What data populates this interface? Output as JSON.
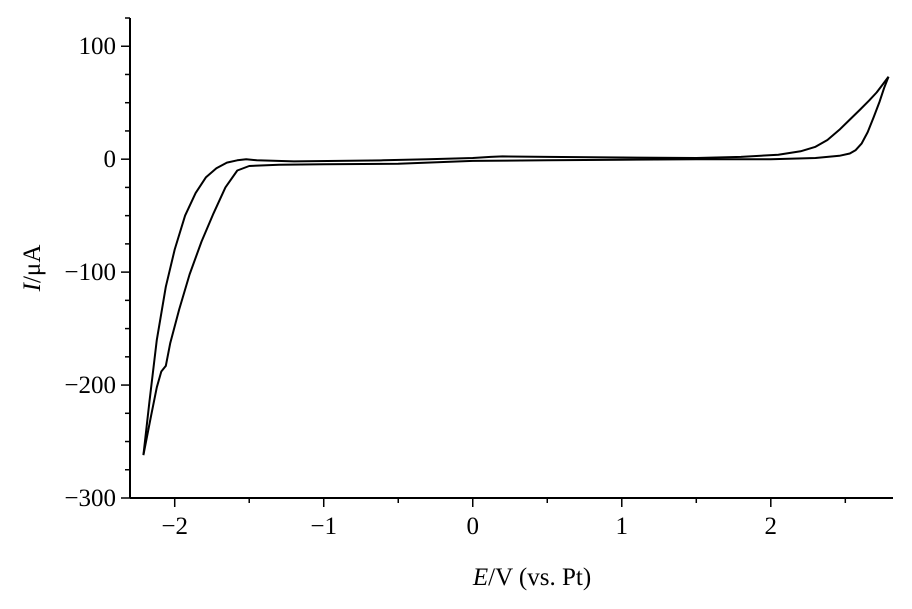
{
  "chart_data": {
    "type": "line",
    "title": "",
    "xlabel": {
      "var": "E",
      "unit": "/V (vs. Pt)"
    },
    "ylabel": {
      "var": "I",
      "unit": "/μA"
    },
    "xlim": [
      -2.3,
      2.82
    ],
    "ylim": [
      -300,
      125
    ],
    "xticks": [
      -2,
      -1,
      0,
      1,
      2
    ],
    "xtick_labels": [
      "−2",
      "−1",
      "0",
      "1",
      "2"
    ],
    "yticks": [
      100,
      0,
      -100,
      -200,
      -300
    ],
    "ytick_labels": [
      "100",
      "0",
      "−100",
      "−200",
      "−300"
    ],
    "x_minor_step": 0.5,
    "y_minor_step": 25,
    "grid": false,
    "line_color": "#000000",
    "series": [
      {
        "values": [
          [
            -2.21,
            -262
          ],
          [
            -2.17,
            -215
          ],
          [
            -2.12,
            -160
          ],
          [
            -2.06,
            -113
          ],
          [
            -2.0,
            -80
          ],
          [
            -1.93,
            -50
          ],
          [
            -1.86,
            -30
          ],
          [
            -1.79,
            -16
          ],
          [
            -1.72,
            -8
          ],
          [
            -1.65,
            -3
          ],
          [
            -1.58,
            -1
          ],
          [
            -1.52,
            0
          ],
          [
            -1.45,
            -1
          ],
          [
            -1.2,
            -2
          ],
          [
            -0.9,
            -1.5
          ],
          [
            -0.6,
            -1
          ],
          [
            -0.3,
            0
          ],
          [
            0.0,
            1
          ],
          [
            0.12,
            2
          ],
          [
            0.2,
            2.5
          ],
          [
            0.5,
            2
          ],
          [
            1.0,
            1.5
          ],
          [
            1.5,
            1
          ],
          [
            1.8,
            2
          ],
          [
            2.05,
            4
          ],
          [
            2.2,
            7
          ],
          [
            2.3,
            11
          ],
          [
            2.38,
            17
          ],
          [
            2.46,
            26
          ],
          [
            2.53,
            35
          ],
          [
            2.6,
            44
          ],
          [
            2.66,
            52
          ],
          [
            2.71,
            59
          ],
          [
            2.75,
            66
          ],
          [
            2.79,
            73
          ]
        ]
      },
      {
        "values": [
          [
            2.79,
            73
          ],
          [
            2.76,
            63
          ],
          [
            2.73,
            51
          ],
          [
            2.69,
            37
          ],
          [
            2.65,
            24
          ],
          [
            2.61,
            14
          ],
          [
            2.57,
            8
          ],
          [
            2.53,
            5
          ],
          [
            2.46,
            3
          ],
          [
            2.3,
            1
          ],
          [
            2.0,
            0
          ],
          [
            1.5,
            0
          ],
          [
            1.0,
            -0.5
          ],
          [
            0.5,
            -1
          ],
          [
            0.0,
            -1.5
          ],
          [
            -0.5,
            -4
          ],
          [
            -1.0,
            -4.5
          ],
          [
            -1.3,
            -5
          ],
          [
            -1.5,
            -6
          ],
          [
            -1.58,
            -10
          ],
          [
            -1.66,
            -25
          ],
          [
            -1.74,
            -48
          ],
          [
            -1.82,
            -73
          ],
          [
            -1.9,
            -102
          ],
          [
            -1.97,
            -133
          ],
          [
            -2.03,
            -163
          ],
          [
            -2.06,
            -183
          ],
          [
            -2.09,
            -188
          ],
          [
            -2.12,
            -202
          ],
          [
            -2.16,
            -228
          ],
          [
            -2.21,
            -262
          ]
        ]
      }
    ]
  }
}
